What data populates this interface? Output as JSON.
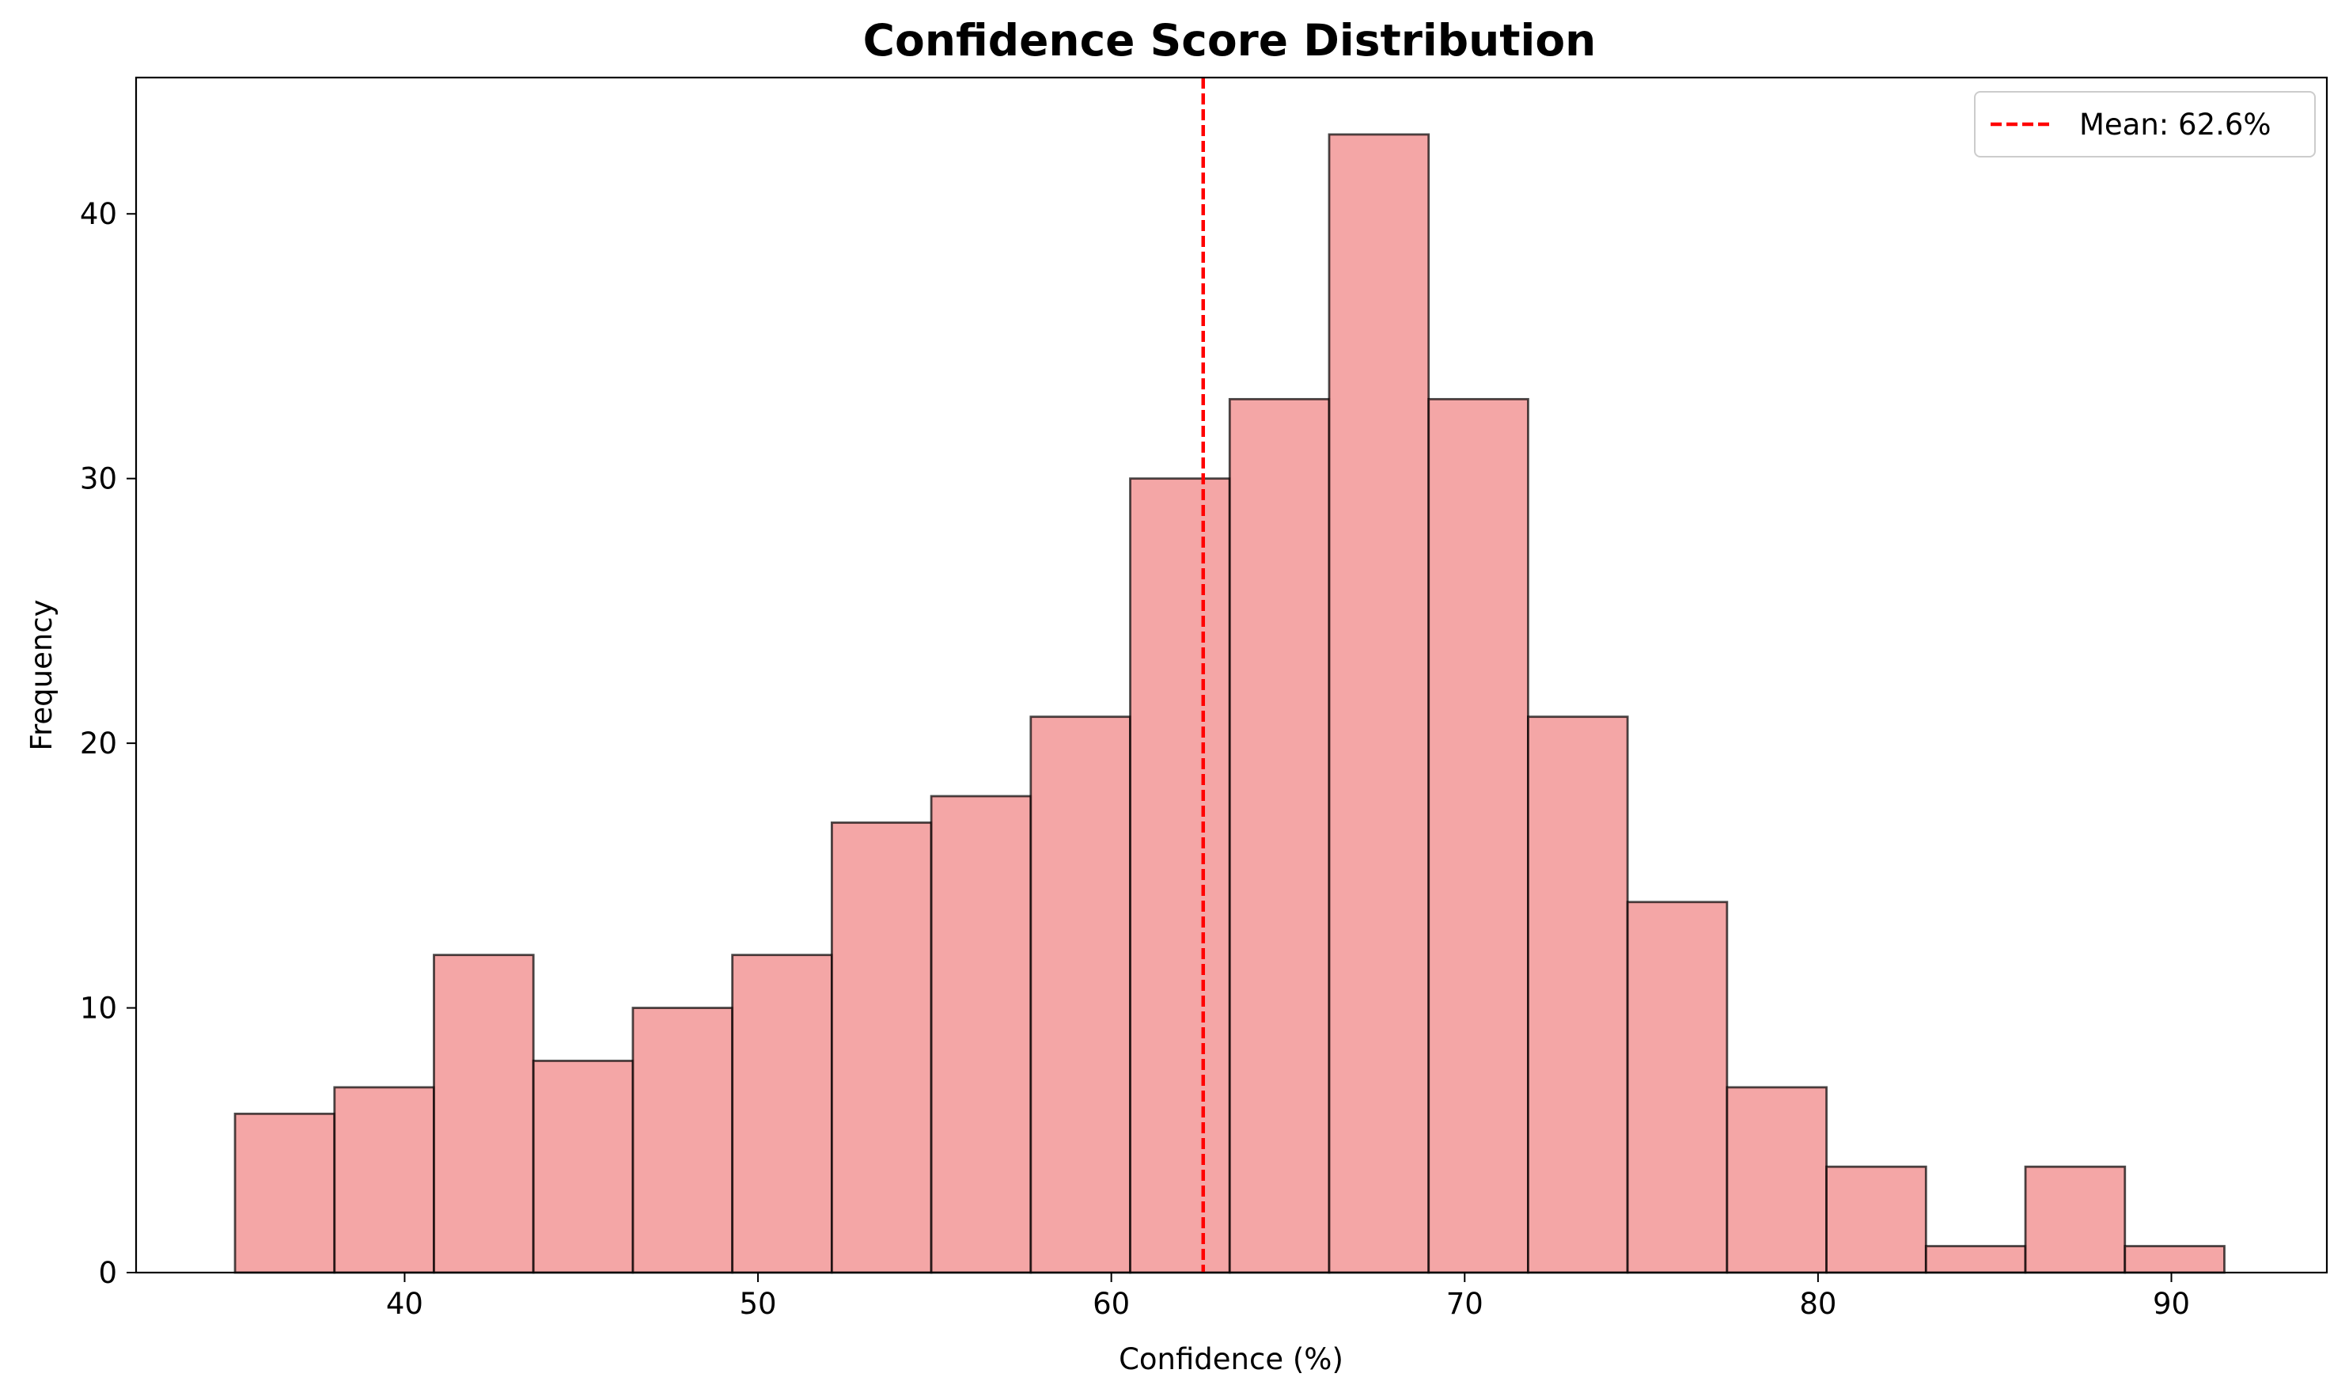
{
  "chart_data": {
    "type": "bar",
    "title": "Confidence Score Distribution",
    "xlabel": "Confidence (%)",
    "ylabel": "Frequency",
    "bin_start": 35.2,
    "bin_width": 2.815,
    "values": [
      6,
      7,
      12,
      8,
      10,
      12,
      17,
      18,
      21,
      30,
      33,
      43,
      33,
      21,
      14,
      7,
      4,
      1,
      4,
      1
    ],
    "xlim": [
      32.4,
      94.4
    ],
    "ylim": [
      0,
      45.15
    ],
    "xticks": [
      40,
      50,
      60,
      70,
      80,
      90
    ],
    "yticks": [
      0,
      10,
      20,
      30,
      40
    ],
    "grid": false,
    "bar_color": "#f08080",
    "bar_alpha": 0.7,
    "edge_color": "#000000",
    "mean_value": 62.6,
    "mean_color": "#ff0000",
    "legend": {
      "placement": "top-right",
      "entries": [
        {
          "label": "Mean: 62.6%",
          "style": "dashed-line",
          "color": "#ff0000"
        }
      ]
    }
  }
}
